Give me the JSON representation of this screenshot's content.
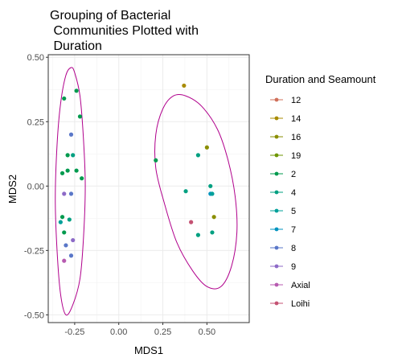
{
  "chart_data": {
    "type": "scatter",
    "title_lines": [
      "Grouping of Bacterial",
      " Communities Plotted with",
      " Duration"
    ],
    "xlabel": "MDS1",
    "ylabel": "MDS2",
    "xlim": [
      -0.4,
      0.74
    ],
    "ylim": [
      -0.53,
      0.51
    ],
    "x_ticks": [
      -0.25,
      0.0,
      0.25,
      0.5
    ],
    "x_tick_labels": [
      "-0.25",
      "0.00",
      "0.25",
      "0.50"
    ],
    "y_ticks": [
      -0.5,
      -0.25,
      0.0,
      0.25,
      0.5
    ],
    "y_tick_labels": [
      "-0.50",
      "-0.25",
      "0.00",
      "0.25",
      "0.50"
    ],
    "grid": true,
    "legend": {
      "title": "Duration and Seamount",
      "position": "right",
      "entries": [
        {
          "label": "12",
          "color": "#D0705A"
        },
        {
          "label": "14",
          "color": "#A88B00"
        },
        {
          "label": "16",
          "color": "#8A8E00"
        },
        {
          "label": "19",
          "color": "#6E9600"
        },
        {
          "label": "2",
          "color": "#009A4E"
        },
        {
          "label": "4",
          "color": "#00A081"
        },
        {
          "label": "5",
          "color": "#00A09A"
        },
        {
          "label": "7",
          "color": "#0093BF"
        },
        {
          "label": "8",
          "color": "#5A77C8"
        },
        {
          "label": "9",
          "color": "#8D6AC7"
        },
        {
          "label": "Axial",
          "color": "#B75AB0"
        },
        {
          "label": "Loihi",
          "color": "#C45273"
        }
      ]
    },
    "points": [
      {
        "x": -0.31,
        "y": 0.34,
        "color": "#009A4E"
      },
      {
        "x": -0.24,
        "y": 0.37,
        "color": "#009A4E"
      },
      {
        "x": -0.22,
        "y": 0.27,
        "color": "#009A4E"
      },
      {
        "x": -0.27,
        "y": 0.2,
        "color": "#5A77C8"
      },
      {
        "x": -0.29,
        "y": 0.12,
        "color": "#009A4E"
      },
      {
        "x": -0.26,
        "y": 0.12,
        "color": "#00A081"
      },
      {
        "x": -0.24,
        "y": 0.06,
        "color": "#009A4E"
      },
      {
        "x": -0.32,
        "y": 0.05,
        "color": "#009A4E"
      },
      {
        "x": -0.29,
        "y": 0.06,
        "color": "#009A4E"
      },
      {
        "x": -0.21,
        "y": 0.03,
        "color": "#009A4E"
      },
      {
        "x": -0.31,
        "y": -0.03,
        "color": "#8D6AC7"
      },
      {
        "x": -0.27,
        "y": -0.03,
        "color": "#5A77C8"
      },
      {
        "x": -0.32,
        "y": -0.12,
        "color": "#009A4E"
      },
      {
        "x": -0.28,
        "y": -0.13,
        "color": "#00A081"
      },
      {
        "x": -0.33,
        "y": -0.14,
        "color": "#00A09A"
      },
      {
        "x": -0.31,
        "y": -0.18,
        "color": "#009A4E"
      },
      {
        "x": -0.26,
        "y": -0.21,
        "color": "#8D6AC7"
      },
      {
        "x": -0.3,
        "y": -0.23,
        "color": "#5A77C8"
      },
      {
        "x": -0.27,
        "y": -0.27,
        "color": "#5A77C8"
      },
      {
        "x": -0.31,
        "y": -0.29,
        "color": "#B75AB0"
      },
      {
        "x": 0.37,
        "y": 0.39,
        "color": "#A88B00"
      },
      {
        "x": 0.5,
        "y": 0.15,
        "color": "#8A8E00"
      },
      {
        "x": 0.45,
        "y": 0.12,
        "color": "#00A081"
      },
      {
        "x": 0.21,
        "y": 0.1,
        "color": "#009A4E"
      },
      {
        "x": 0.52,
        "y": 0.0,
        "color": "#00A081"
      },
      {
        "x": 0.38,
        "y": -0.02,
        "color": "#00A081"
      },
      {
        "x": 0.52,
        "y": -0.03,
        "color": "#0093BF"
      },
      {
        "x": 0.53,
        "y": -0.03,
        "color": "#00A09A"
      },
      {
        "x": 0.54,
        "y": -0.12,
        "color": "#8A8E00"
      },
      {
        "x": 0.41,
        "y": -0.14,
        "color": "#C45273"
      },
      {
        "x": 0.53,
        "y": -0.18,
        "color": "#00A081"
      },
      {
        "x": 0.45,
        "y": -0.19,
        "color": "#00A081"
      }
    ],
    "ellipses": [
      {
        "name": "left-group",
        "cx": -0.275,
        "cy": -0.02,
        "x_extent": 0.07,
        "y_extent": 0.48,
        "color": "#B0008C"
      },
      {
        "name": "right-group",
        "cx": 0.46,
        "cy": 0.0,
        "x_extent": 0.25,
        "y_extent": 0.35,
        "color": "#B0008C"
      }
    ],
    "ellipse_outline": [
      [
        [
          -0.25,
          0.44
        ],
        [
          -0.22,
          0.35
        ],
        [
          -0.2,
          0.18
        ],
        [
          -0.19,
          0.0
        ],
        [
          -0.2,
          -0.2
        ],
        [
          -0.22,
          -0.36
        ],
        [
          -0.26,
          -0.46
        ],
        [
          -0.3,
          -0.5
        ],
        [
          -0.33,
          -0.42
        ],
        [
          -0.35,
          -0.25
        ],
        [
          -0.36,
          -0.05
        ],
        [
          -0.35,
          0.16
        ],
        [
          -0.33,
          0.32
        ],
        [
          -0.3,
          0.43
        ],
        [
          -0.27,
          0.46
        ]
      ],
      [
        [
          0.38,
          0.35
        ],
        [
          0.47,
          0.31
        ],
        [
          0.56,
          0.22
        ],
        [
          0.62,
          0.1
        ],
        [
          0.66,
          -0.04
        ],
        [
          0.67,
          -0.18
        ],
        [
          0.64,
          -0.31
        ],
        [
          0.58,
          -0.39
        ],
        [
          0.5,
          -0.39
        ],
        [
          0.42,
          -0.33
        ],
        [
          0.33,
          -0.22
        ],
        [
          0.26,
          -0.07
        ],
        [
          0.21,
          0.07
        ],
        [
          0.21,
          0.2
        ],
        [
          0.25,
          0.3
        ],
        [
          0.31,
          0.35
        ]
      ]
    ]
  }
}
